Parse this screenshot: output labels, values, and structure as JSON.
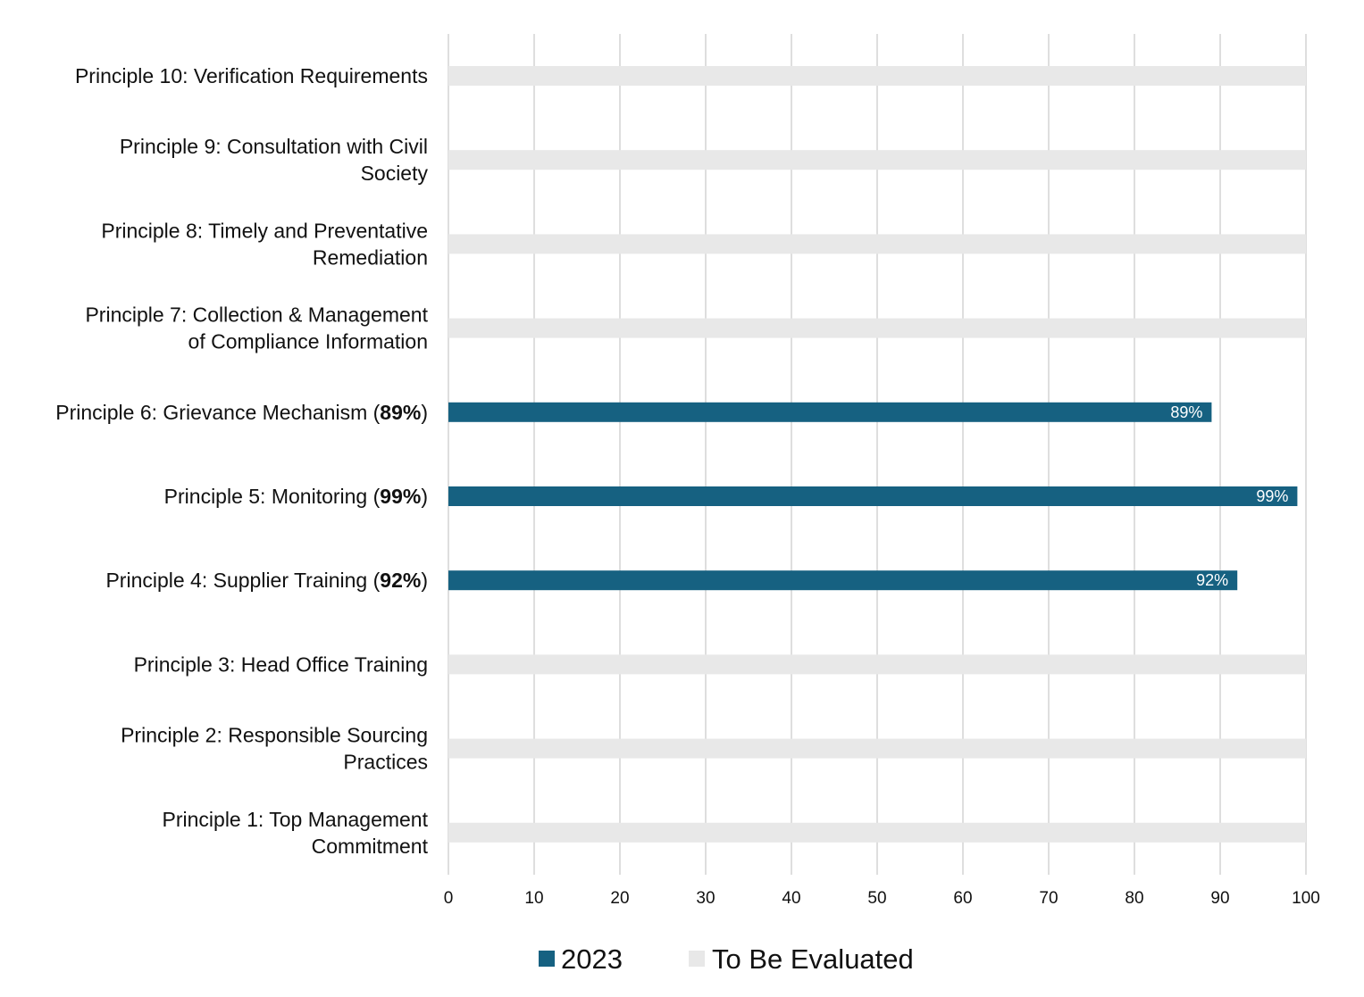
{
  "chart_data": {
    "type": "bar",
    "orientation": "horizontal",
    "title": "",
    "xlabel": "",
    "ylabel": "",
    "xlim": [
      0,
      100
    ],
    "x_ticks": [
      0,
      10,
      20,
      30,
      40,
      50,
      60,
      70,
      80,
      90,
      100
    ],
    "grid": "vertical",
    "legend_position": "bottom",
    "categories": [
      {
        "lines": [
          "Principle 10: Verification Requirements"
        ],
        "value_text": ""
      },
      {
        "lines": [
          "Principle 9: Consultation with Civil",
          "Society"
        ],
        "value_text": ""
      },
      {
        "lines": [
          "Principle 8: Timely and Preventative",
          "Remediation"
        ],
        "value_text": ""
      },
      {
        "lines": [
          "Principle 7: Collection & Management",
          "of Compliance Information"
        ],
        "value_text": ""
      },
      {
        "lines": [
          "Principle 6: Grievance Mechanism ("
        ],
        "value_text": "89%",
        "suffix": ")"
      },
      {
        "lines": [
          "Principle 5: Monitoring ("
        ],
        "value_text": "99%",
        "suffix": ")"
      },
      {
        "lines": [
          "Principle 4: Supplier Training ("
        ],
        "value_text": "92%",
        "suffix": ")"
      },
      {
        "lines": [
          "Principle 3: Head Office Training"
        ],
        "value_text": ""
      },
      {
        "lines": [
          "Principle 2: Responsible Sourcing",
          "Practices"
        ],
        "value_text": ""
      },
      {
        "lines": [
          "Principle 1: Top Management",
          "Commitment"
        ],
        "value_text": ""
      }
    ],
    "series": [
      {
        "name": "2023",
        "color": "#166181",
        "values": [
          null,
          null,
          null,
          null,
          89,
          99,
          92,
          null,
          null,
          null
        ],
        "data_labels": [
          "",
          "",
          "",
          "",
          "89%",
          "99%",
          "92%",
          "",
          "",
          ""
        ]
      },
      {
        "name": "To Be Evaluated",
        "color": "#e8e8e8",
        "values": [
          100,
          100,
          100,
          100,
          null,
          null,
          null,
          100,
          100,
          100
        ],
        "data_labels": [
          "",
          "",
          "",
          "",
          "",
          "",
          "",
          "",
          "",
          ""
        ]
      }
    ]
  }
}
